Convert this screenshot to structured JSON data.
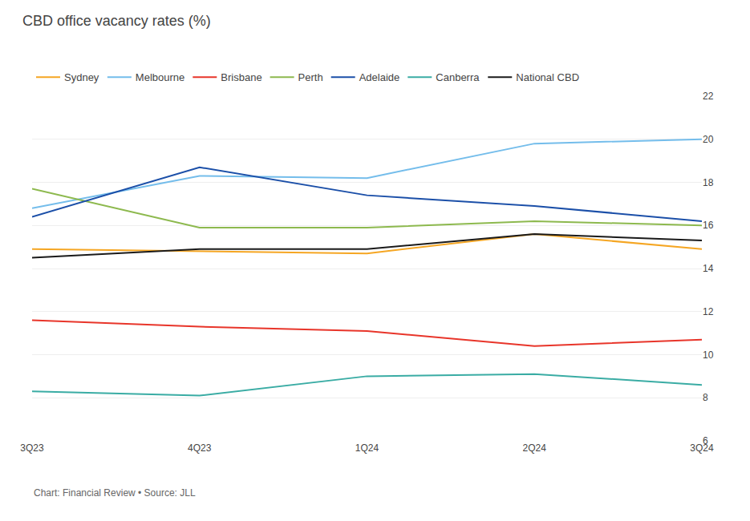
{
  "chart_data": {
    "type": "line",
    "title": "CBD office vacancy rates (%)",
    "categories": [
      "3Q23",
      "4Q23",
      "1Q24",
      "2Q24",
      "3Q24"
    ],
    "series": [
      {
        "name": "Sydney",
        "color": "#F5A623",
        "values": [
          14.9,
          14.8,
          14.7,
          15.6,
          14.9
        ]
      },
      {
        "name": "Melbourne",
        "color": "#74BDEB",
        "values": [
          16.8,
          18.3,
          18.2,
          19.8,
          20.0
        ]
      },
      {
        "name": "Brisbane",
        "color": "#E8352A",
        "values": [
          11.6,
          11.3,
          11.1,
          10.4,
          10.7
        ]
      },
      {
        "name": "Perth",
        "color": "#8DB94E",
        "values": [
          17.7,
          15.9,
          15.9,
          16.2,
          16.0
        ]
      },
      {
        "name": "Adelaide",
        "color": "#1B4FA8",
        "values": [
          16.4,
          18.7,
          17.4,
          16.9,
          16.2
        ]
      },
      {
        "name": "Canberra",
        "color": "#3AACA4",
        "values": [
          8.3,
          8.1,
          9.0,
          9.1,
          8.6
        ]
      },
      {
        "name": "National CBD",
        "color": "#1A1A1A",
        "values": [
          14.5,
          14.9,
          14.9,
          15.6,
          15.3
        ]
      }
    ],
    "ylim": [
      6,
      22
    ],
    "yticks": [
      6,
      8,
      10,
      12,
      14,
      16,
      18,
      20,
      22
    ],
    "grid": true,
    "legend": "top left",
    "annotations": [
      "Chart: Financial Review • Source: JLL"
    ]
  }
}
